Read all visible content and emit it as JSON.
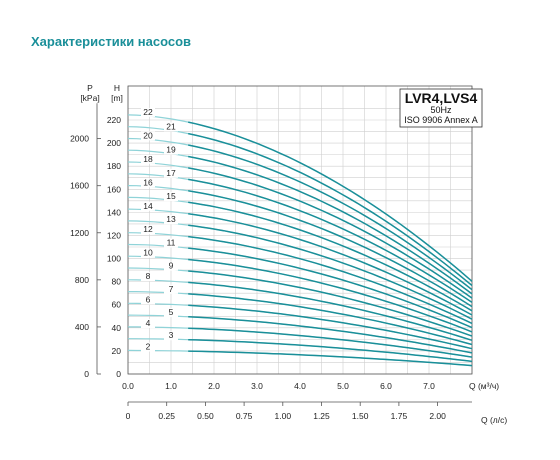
{
  "page_title": "Характеристики насосов",
  "chart_data": {
    "type": "line",
    "title": "LVR4,LVS4",
    "subtitle_freq": "50Hz",
    "subtitle_std": "ISO 9906 Annex A",
    "xlabel": "Q (м³/ч)",
    "xlabel2": "Q (л/с)",
    "ylabel_h_unit": "H",
    "ylabel_h_unit2": "[m]",
    "ylabel_p_unit": "P",
    "ylabel_p_unit2": "[kPa]",
    "xlim": [
      0,
      8.1
    ],
    "ylim": [
      0,
      230
    ],
    "grid": true,
    "x_ticks": [
      "0.0",
      "1.0",
      "2.0",
      "3.0",
      "4.0",
      "5.0",
      "6.0",
      "7.0"
    ],
    "x_tick_values": [
      0,
      1,
      2,
      3,
      4,
      5,
      6,
      7
    ],
    "x2_ticks": [
      "0",
      "0.25",
      "0.50",
      "0.75",
      "1.00",
      "1.25",
      "1.50",
      "1.75",
      "2.00"
    ],
    "x2_tick_values": [
      0,
      0.25,
      0.5,
      0.75,
      1.0,
      1.25,
      1.5,
      1.75,
      2.0
    ],
    "h_ticks": [
      "0",
      "20",
      "40",
      "60",
      "80",
      "100",
      "120",
      "140",
      "160",
      "180",
      "200",
      "220"
    ],
    "h_tick_values": [
      0,
      20,
      40,
      60,
      80,
      100,
      120,
      140,
      160,
      180,
      200,
      220
    ],
    "p_ticks": [
      "0",
      "400",
      "800",
      "1200",
      "1600",
      "2000"
    ],
    "p_tick_values": [
      0,
      400,
      800,
      1200,
      1600,
      2000
    ],
    "stages": [
      "2",
      "3",
      "4",
      "5",
      "6",
      "7",
      "8",
      "9",
      "10",
      "11",
      "12",
      "13",
      "14",
      "15",
      "16",
      "17",
      "18",
      "19",
      "20",
      "21",
      "22"
    ],
    "stage_count": [
      2,
      3,
      4,
      5,
      6,
      7,
      8,
      9,
      10,
      11,
      12,
      13,
      14,
      15,
      16,
      17,
      18,
      19,
      20,
      21,
      22
    ],
    "head_per_stage_shutoff": 10.2,
    "head_per_stage_end": 3.65,
    "q_end": 8.0,
    "line_color": "#1a8f99",
    "highlight_color": "#8fd3d8"
  }
}
